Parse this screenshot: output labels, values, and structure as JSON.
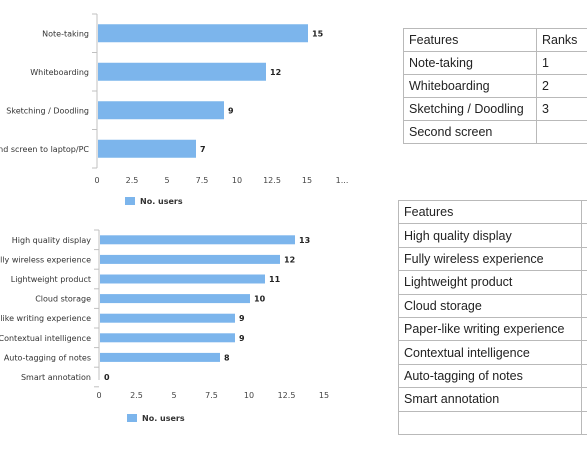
{
  "charts": [
    {
      "type": "bar",
      "orientation": "horizontal",
      "categories": [
        "Note-taking",
        "Whiteboarding",
        "Sketching / Doodling",
        "Second screen to laptop/PC"
      ],
      "values": [
        15,
        12,
        9,
        7
      ],
      "xlim": [
        0,
        16.5
      ],
      "ticks": [
        "0",
        "2.5",
        "5",
        "7.5",
        "10",
        "12.5",
        "15",
        "1..."
      ],
      "legend": "No. users",
      "color": "#7cb5ec"
    },
    {
      "type": "bar",
      "orientation": "horizontal",
      "categories": [
        "High quality display",
        "Fully wireless experience",
        "Lightweight product",
        "Cloud storage",
        "Paper-like writing experience",
        "Contextual intelligence",
        "Auto-tagging of notes",
        "Smart annotation"
      ],
      "values": [
        13,
        12,
        11,
        10,
        9,
        9,
        8,
        0
      ],
      "xlim": [
        0,
        15
      ],
      "ticks": [
        "0",
        "2.5",
        "5",
        "7.5",
        "10",
        "12.5",
        "15"
      ],
      "legend": "No. users",
      "color": "#7cb5ec"
    }
  ],
  "chart_data": [
    {
      "type": "bar",
      "categories": [
        "Note-taking",
        "Whiteboarding",
        "Sketching / Doodling",
        "Second screen to laptop/PC"
      ],
      "values": [
        15,
        12,
        9,
        7
      ],
      "series": [
        {
          "name": "No. users",
          "values": [
            15,
            12,
            9,
            7
          ]
        }
      ],
      "xlabel": "",
      "ylabel": "",
      "xlim": [
        0,
        16.5
      ]
    },
    {
      "type": "bar",
      "categories": [
        "High quality display",
        "Fully wireless experience",
        "Lightweight product",
        "Cloud storage",
        "Paper-like writing experience",
        "Contextual intelligence",
        "Auto-tagging of notes",
        "Smart annotation"
      ],
      "values": [
        13,
        12,
        11,
        10,
        9,
        9,
        8,
        0
      ],
      "series": [
        {
          "name": "No. users",
          "values": [
            13,
            12,
            11,
            10,
            9,
            9,
            8,
            0
          ]
        }
      ],
      "xlabel": "",
      "ylabel": "",
      "xlim": [
        0,
        15
      ]
    }
  ],
  "tables": {
    "table1": {
      "headers": [
        "Features",
        "Ranks"
      ],
      "rows": [
        [
          "Note-taking",
          "1"
        ],
        [
          "Whiteboarding",
          "2"
        ],
        [
          "Sketching / Doodling",
          "3"
        ],
        [
          "Second screen",
          ""
        ]
      ]
    },
    "table2": {
      "headers": [
        "Features",
        ""
      ],
      "rows": [
        [
          "High quality display",
          ""
        ],
        [
          "Fully wireless experience",
          ""
        ],
        [
          "Lightweight product",
          ""
        ],
        [
          "Cloud storage",
          ""
        ],
        [
          "Paper-like writing experience",
          ""
        ],
        [
          "Contextual intelligence",
          ""
        ],
        [
          "Auto-tagging of notes",
          ""
        ],
        [
          "Smart annotation",
          ""
        ],
        [
          "",
          ""
        ]
      ]
    }
  }
}
